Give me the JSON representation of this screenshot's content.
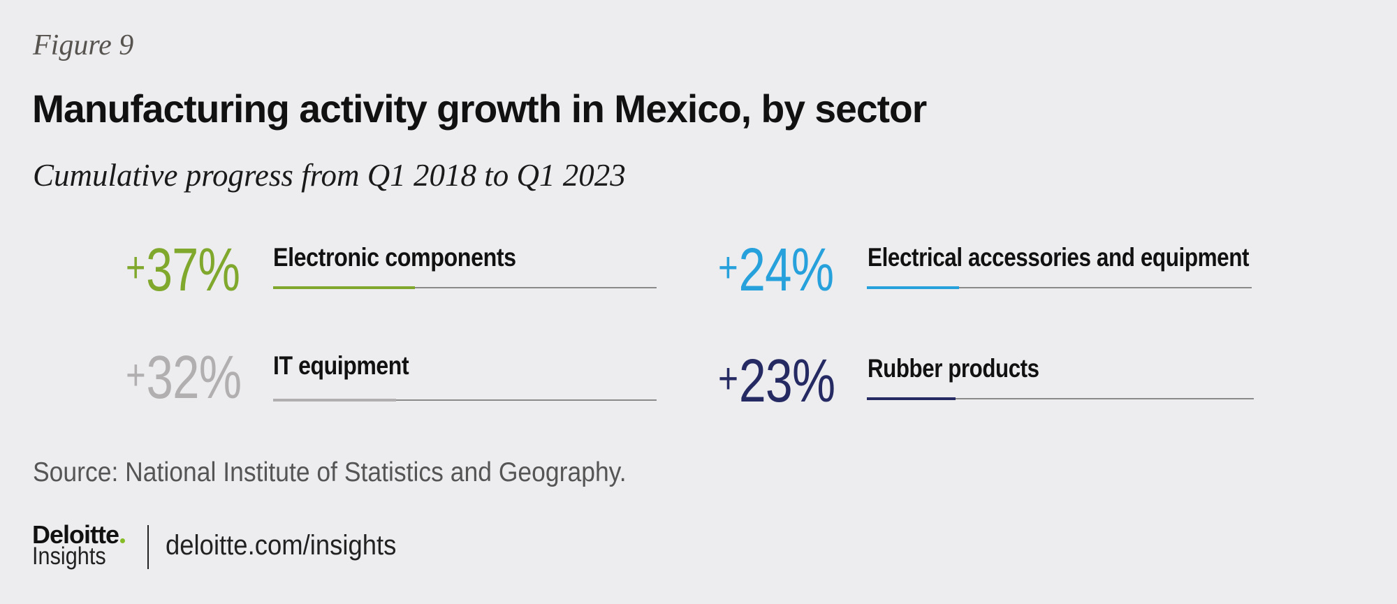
{
  "figure_label": "Figure 9",
  "title": "Manufacturing activity growth in Mexico, by sector",
  "subtitle": "Cumulative progress from Q1 2018 to Q1 2023",
  "source": "Source: National Institute of Statistics and Geography.",
  "footer": {
    "logo_word": "Deloitte",
    "logo_sub": "Insights",
    "url": "deloitte.com/insights"
  },
  "chart_data": {
    "type": "bar",
    "title": "Manufacturing activity growth in Mexico, by sector",
    "subtitle": "Cumulative progress from Q1 2018 to Q1 2023",
    "xlabel": "",
    "ylabel": "",
    "ylim": [
      0,
      100
    ],
    "unit": "%",
    "categories": [
      "Electronic components",
      "IT equipment",
      "Electrical accessories and equipment",
      "Rubber products"
    ],
    "values": [
      37,
      32,
      24,
      23
    ],
    "items": [
      {
        "sign": "+",
        "value": 37,
        "display": "37%",
        "label": "Electronic components",
        "color": "#7fa82c"
      },
      {
        "sign": "+",
        "value": 32,
        "display": "32%",
        "label": "IT equipment",
        "color": "#b1afaf"
      },
      {
        "sign": "+",
        "value": 24,
        "display": "24%",
        "label": "Electrical accessories and equipment",
        "color": "#27a1db"
      },
      {
        "sign": "+",
        "value": 23,
        "display": "23%",
        "label": "Rubber products",
        "color": "#262a62"
      }
    ],
    "track_color": "#8a8a8a"
  }
}
